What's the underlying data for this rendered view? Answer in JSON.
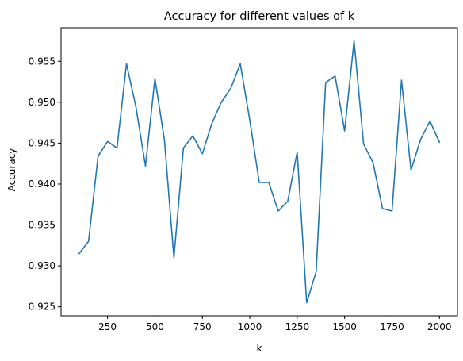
{
  "chart_data": {
    "type": "line",
    "title": "Accuracy for different values of k",
    "xlabel": "k",
    "ylabel": "Accuracy",
    "xlim": [
      5,
      2095
    ],
    "ylim": [
      0.9239,
      0.9591
    ],
    "grid": false,
    "x_ticks": [
      250,
      500,
      750,
      1000,
      1250,
      1500,
      1750,
      2000
    ],
    "x_tick_labels": [
      "250",
      "500",
      "750",
      "1000",
      "1250",
      "1500",
      "1750",
      "2000"
    ],
    "y_ticks": [
      0.925,
      0.93,
      0.935,
      0.94,
      0.945,
      0.95,
      0.955
    ],
    "y_tick_labels": [
      "0.925",
      "0.930",
      "0.935",
      "0.940",
      "0.945",
      "0.950",
      "0.955"
    ],
    "series": [
      {
        "color": "#1f77b4",
        "x": [
          100,
          150,
          200,
          250,
          300,
          350,
          400,
          450,
          500,
          550,
          600,
          650,
          700,
          750,
          800,
          850,
          900,
          950,
          1000,
          1050,
          1100,
          1150,
          1200,
          1250,
          1300,
          1350,
          1400,
          1450,
          1500,
          1550,
          1600,
          1650,
          1700,
          1750,
          1800,
          1850,
          1900,
          1950,
          2000
        ],
        "y": [
          0.9315,
          0.933,
          0.9434,
          0.9452,
          0.9444,
          0.9547,
          0.9494,
          0.9422,
          0.9529,
          0.9454,
          0.931,
          0.9444,
          0.9459,
          0.9437,
          0.9474,
          0.95,
          0.9517,
          0.9547,
          0.9478,
          0.9402,
          0.9402,
          0.9367,
          0.9379,
          0.9439,
          0.9255,
          0.9293,
          0.9524,
          0.9532,
          0.9465,
          0.9575,
          0.9449,
          0.9426,
          0.937,
          0.9367,
          0.9527,
          0.9417,
          0.9454,
          0.9477,
          0.9451
        ]
      }
    ]
  }
}
